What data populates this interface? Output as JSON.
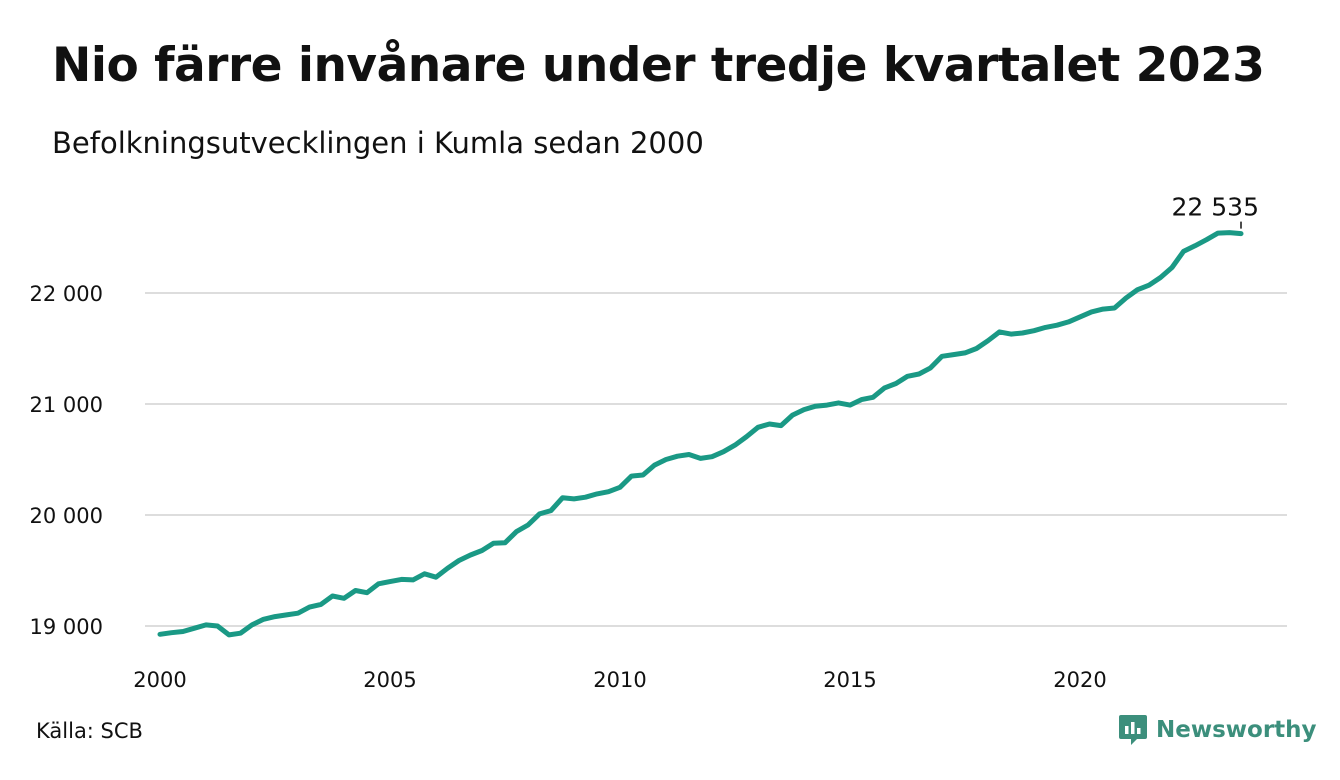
{
  "title": "Nio färre invånare under tredje kvartalet 2023",
  "subtitle": "Befolkningsutvecklingen i Kumla sedan 2000",
  "source": "Källa: SCB",
  "brand": {
    "name": "Newsworthy",
    "icon": "newsworthy-logo-icon",
    "color": "#3c8f7c"
  },
  "colors": {
    "line": "#1a9985",
    "grid": "#dddddd",
    "text": "#111111"
  },
  "chart_data": {
    "type": "line",
    "title": "Nio färre invånare under tredje kvartalet 2023",
    "subtitle": "Befolkningsutvecklingen i Kumla sedan 2000",
    "xlabel": "",
    "ylabel": "",
    "xlim": [
      2000,
      2024.5
    ],
    "ylim": [
      18900,
      22600
    ],
    "x_ticks": [
      2000,
      2005,
      2010,
      2015,
      2020
    ],
    "x_tick_labels": [
      "2000",
      "2005",
      "2010",
      "2015",
      "2020"
    ],
    "y_ticks": [
      19000,
      20000,
      21000,
      22000
    ],
    "y_tick_labels": [
      "19 000",
      "20 000",
      "21 000",
      "22 000"
    ],
    "grid": "horizontal",
    "legend": "none",
    "end_label": "22 535",
    "series": [
      {
        "color": "#1a9985",
        "points": [
          [
            2000.0,
            18925
          ],
          [
            2000.25,
            18940
          ],
          [
            2000.5,
            18950
          ],
          [
            2000.75,
            18980
          ],
          [
            2001.0,
            19010
          ],
          [
            2001.25,
            19000
          ],
          [
            2001.5,
            18920
          ],
          [
            2001.75,
            18935
          ],
          [
            2002.0,
            19010
          ],
          [
            2002.25,
            19060
          ],
          [
            2002.5,
            19085
          ],
          [
            2002.75,
            19100
          ],
          [
            2003.0,
            19115
          ],
          [
            2003.25,
            19170
          ],
          [
            2003.5,
            19195
          ],
          [
            2003.75,
            19270
          ],
          [
            2004.0,
            19250
          ],
          [
            2004.25,
            19320
          ],
          [
            2004.5,
            19300
          ],
          [
            2004.75,
            19380
          ],
          [
            2005.0,
            19400
          ],
          [
            2005.25,
            19420
          ],
          [
            2005.5,
            19415
          ],
          [
            2005.75,
            19470
          ],
          [
            2006.0,
            19440
          ],
          [
            2006.25,
            19520
          ],
          [
            2006.5,
            19590
          ],
          [
            2006.75,
            19640
          ],
          [
            2007.0,
            19680
          ],
          [
            2007.25,
            19745
          ],
          [
            2007.5,
            19750
          ],
          [
            2007.75,
            19850
          ],
          [
            2008.0,
            19910
          ],
          [
            2008.25,
            20010
          ],
          [
            2008.5,
            20040
          ],
          [
            2008.75,
            20155
          ],
          [
            2009.0,
            20145
          ],
          [
            2009.25,
            20160
          ],
          [
            2009.5,
            20190
          ],
          [
            2009.75,
            20210
          ],
          [
            2010.0,
            20250
          ],
          [
            2010.25,
            20350
          ],
          [
            2010.5,
            20360
          ],
          [
            2010.75,
            20450
          ],
          [
            2011.0,
            20500
          ],
          [
            2011.25,
            20530
          ],
          [
            2011.5,
            20545
          ],
          [
            2011.75,
            20510
          ],
          [
            2012.0,
            20525
          ],
          [
            2012.25,
            20570
          ],
          [
            2012.5,
            20630
          ],
          [
            2012.75,
            20705
          ],
          [
            2013.0,
            20790
          ],
          [
            2013.25,
            20820
          ],
          [
            2013.5,
            20805
          ],
          [
            2013.75,
            20900
          ],
          [
            2014.0,
            20950
          ],
          [
            2014.25,
            20980
          ],
          [
            2014.5,
            20990
          ],
          [
            2014.75,
            21010
          ],
          [
            2015.0,
            20990
          ],
          [
            2015.25,
            21040
          ],
          [
            2015.5,
            21060
          ],
          [
            2015.75,
            21145
          ],
          [
            2016.0,
            21185
          ],
          [
            2016.25,
            21250
          ],
          [
            2016.5,
            21270
          ],
          [
            2016.75,
            21325
          ],
          [
            2017.0,
            21430
          ],
          [
            2017.25,
            21445
          ],
          [
            2017.5,
            21460
          ],
          [
            2017.75,
            21500
          ],
          [
            2018.0,
            21570
          ],
          [
            2018.25,
            21650
          ],
          [
            2018.5,
            21630
          ],
          [
            2018.75,
            21640
          ],
          [
            2019.0,
            21660
          ],
          [
            2019.25,
            21690
          ],
          [
            2019.5,
            21710
          ],
          [
            2019.75,
            21740
          ],
          [
            2020.0,
            21785
          ],
          [
            2020.25,
            21830
          ],
          [
            2020.5,
            21855
          ],
          [
            2020.75,
            21865
          ],
          [
            2021.0,
            21955
          ],
          [
            2021.25,
            22030
          ],
          [
            2021.5,
            22070
          ],
          [
            2021.75,
            22140
          ],
          [
            2022.0,
            22230
          ],
          [
            2022.25,
            22375
          ],
          [
            2022.5,
            22425
          ],
          [
            2022.75,
            22480
          ],
          [
            2023.0,
            22540
          ],
          [
            2023.25,
            22544
          ],
          [
            2023.5,
            22535
          ]
        ]
      }
    ]
  }
}
